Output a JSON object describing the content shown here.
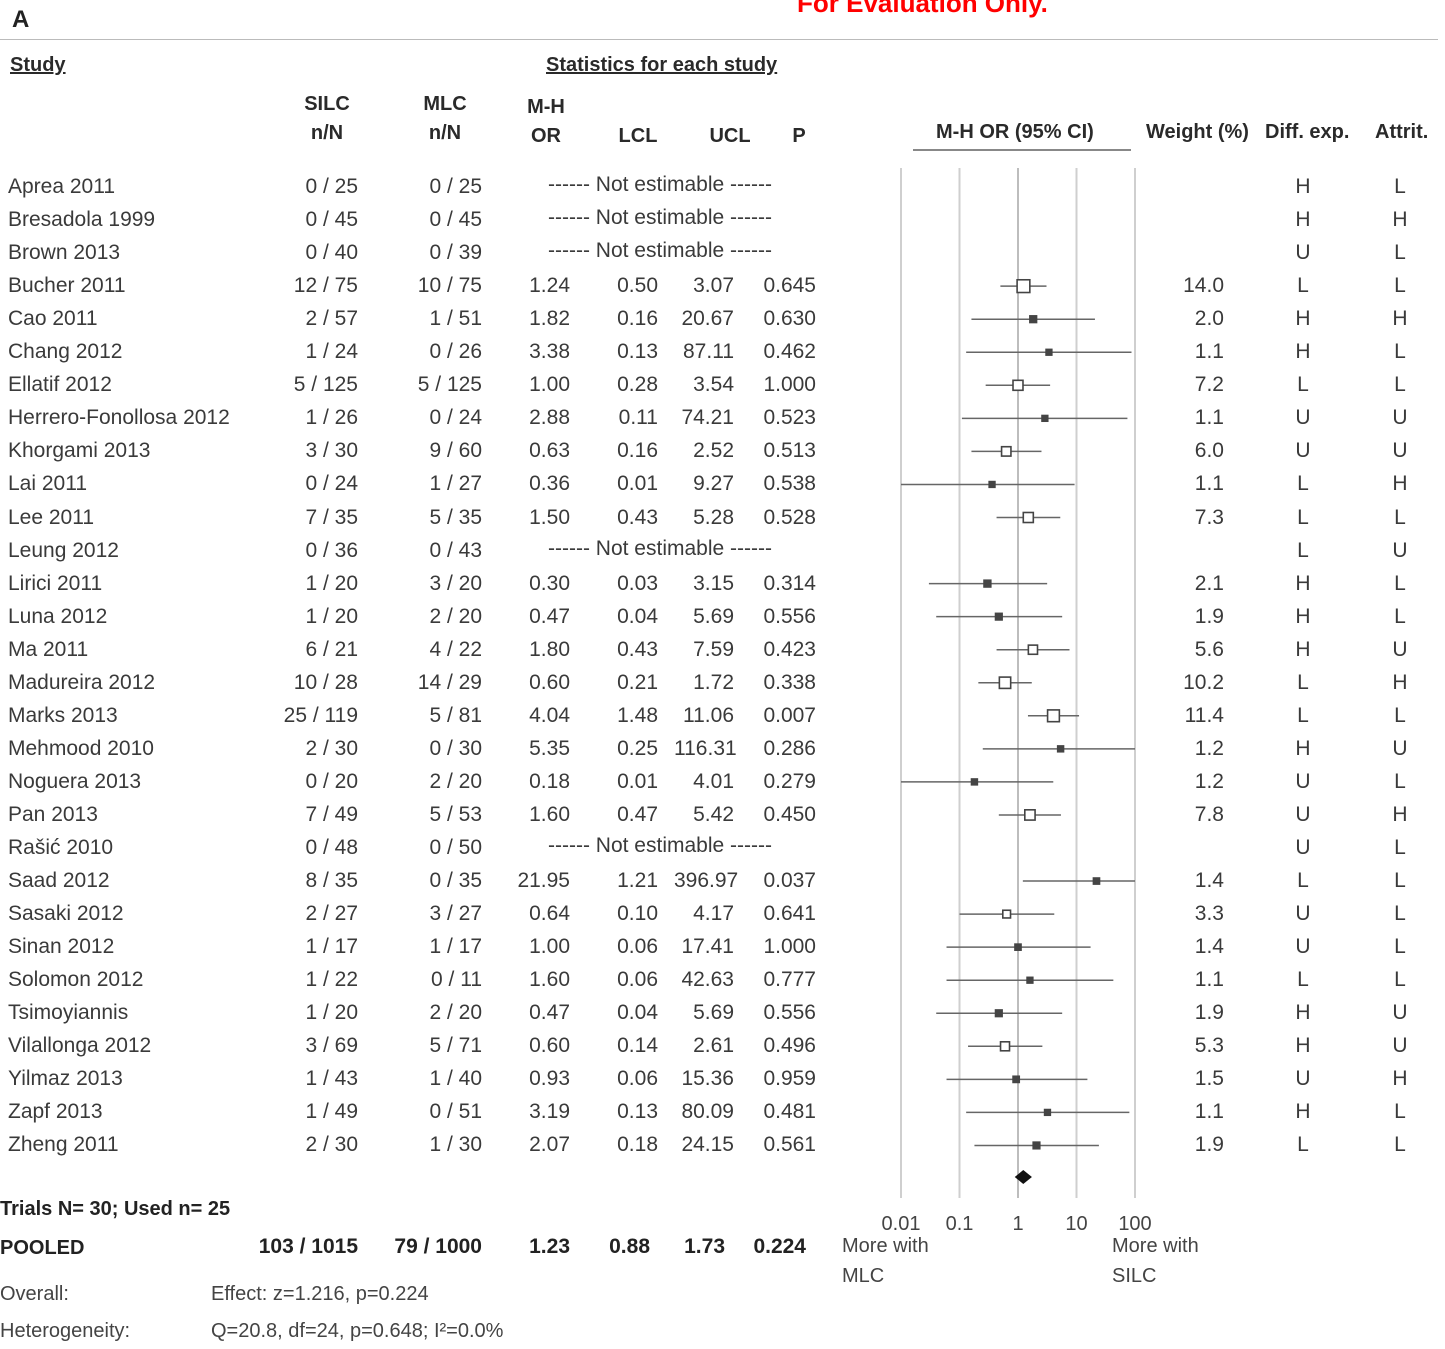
{
  "panel_label": "A",
  "watermark": "For Evaluation Only.",
  "headers": {
    "study": "Study",
    "stats_group": "Statistics for each study",
    "silc_1": "SILC",
    "silc_2": "n/N",
    "mlc_1": "MLC",
    "mlc_2": "n/N",
    "mh_1": "M-H",
    "mh_2": "OR",
    "lcl": "LCL",
    "ucl": "UCL",
    "p": "P",
    "ci": "M-H OR (95% CI)",
    "weight": "Weight (%)",
    "diff": "Diff. exp.",
    "attrit": "Attrit."
  },
  "not_estimable": "------ Not estimable ------",
  "studies": [
    {
      "study": "Aprea 2011",
      "silc": "0 / 25",
      "mlc": "0 / 25",
      "or": "",
      "lcl": "",
      "ucl": "",
      "p": "",
      "ne": "------ Not estimable ------",
      "weight": "",
      "diff": "H",
      "attrit": "L"
    },
    {
      "study": "Bresadola 1999",
      "silc": "0 / 45",
      "mlc": "0 / 45",
      "or": "",
      "lcl": "",
      "ucl": "",
      "p": "",
      "ne": "------ Not estimable ------",
      "weight": "",
      "diff": "H",
      "attrit": "H"
    },
    {
      "study": "Brown 2013",
      "silc": "0 / 40",
      "mlc": "0 / 39",
      "or": "",
      "lcl": "",
      "ucl": "",
      "p": "",
      "ne": "------ Not estimable ------",
      "weight": "",
      "diff": "U",
      "attrit": "L"
    },
    {
      "study": "Bucher 2011",
      "silc": "12 / 75",
      "mlc": "10 / 75",
      "or": "1.24",
      "lcl": "0.50",
      "ucl": "3.07",
      "p": "0.645",
      "ne": "",
      "weight": "14.0",
      "diff": "L",
      "attrit": "L"
    },
    {
      "study": "Cao 2011",
      "silc": "2 / 57",
      "mlc": "1 / 51",
      "or": "1.82",
      "lcl": "0.16",
      "ucl": "20.67",
      "p": "0.630",
      "ne": "",
      "weight": "2.0",
      "diff": "H",
      "attrit": "H"
    },
    {
      "study": "Chang 2012",
      "silc": "1 / 24",
      "mlc": "0 / 26",
      "or": "3.38",
      "lcl": "0.13",
      "ucl": "87.11",
      "p": "0.462",
      "ne": "",
      "weight": "1.1",
      "diff": "H",
      "attrit": "L"
    },
    {
      "study": "Ellatif 2012",
      "silc": "5 / 125",
      "mlc": "5 / 125",
      "or": "1.00",
      "lcl": "0.28",
      "ucl": "3.54",
      "p": "1.000",
      "ne": "",
      "weight": "7.2",
      "diff": "L",
      "attrit": "L"
    },
    {
      "study": "Herrero-Fonollosa 2012",
      "silc": "1 / 26",
      "mlc": "0 / 24",
      "or": "2.88",
      "lcl": "0.11",
      "ucl": "74.21",
      "p": "0.523",
      "ne": "",
      "weight": "1.1",
      "diff": "U",
      "attrit": "U"
    },
    {
      "study": "Khorgami 2013",
      "silc": "3 / 30",
      "mlc": "9 / 60",
      "or": "0.63",
      "lcl": "0.16",
      "ucl": "2.52",
      "p": "0.513",
      "ne": "",
      "weight": "6.0",
      "diff": "U",
      "attrit": "U"
    },
    {
      "study": "Lai 2011",
      "silc": "0 / 24",
      "mlc": "1 / 27",
      "or": "0.36",
      "lcl": "0.01",
      "ucl": "9.27",
      "p": "0.538",
      "ne": "",
      "weight": "1.1",
      "diff": "L",
      "attrit": "H"
    },
    {
      "study": "Lee 2011",
      "silc": "7 / 35",
      "mlc": "5 / 35",
      "or": "1.50",
      "lcl": "0.43",
      "ucl": "5.28",
      "p": "0.528",
      "ne": "",
      "weight": "7.3",
      "diff": "L",
      "attrit": "L"
    },
    {
      "study": "Leung 2012",
      "silc": "0 / 36",
      "mlc": "0 / 43",
      "or": "",
      "lcl": "",
      "ucl": "",
      "p": "",
      "ne": "------ Not estimable ------",
      "weight": "",
      "diff": "L",
      "attrit": "U"
    },
    {
      "study": "Lirici 2011",
      "silc": "1 / 20",
      "mlc": "3 / 20",
      "or": "0.30",
      "lcl": "0.03",
      "ucl": "3.15",
      "p": "0.314",
      "ne": "",
      "weight": "2.1",
      "diff": "H",
      "attrit": "L"
    },
    {
      "study": "Luna 2012",
      "silc": "1 / 20",
      "mlc": "2 / 20",
      "or": "0.47",
      "lcl": "0.04",
      "ucl": "5.69",
      "p": "0.556",
      "ne": "",
      "weight": "1.9",
      "diff": "H",
      "attrit": "L"
    },
    {
      "study": "Ma 2011",
      "silc": "6 / 21",
      "mlc": "4 / 22",
      "or": "1.80",
      "lcl": "0.43",
      "ucl": "7.59",
      "p": "0.423",
      "ne": "",
      "weight": "5.6",
      "diff": "H",
      "attrit": "U"
    },
    {
      "study": "Madureira 2012",
      "silc": "10 / 28",
      "mlc": "14 / 29",
      "or": "0.60",
      "lcl": "0.21",
      "ucl": "1.72",
      "p": "0.338",
      "ne": "",
      "weight": "10.2",
      "diff": "L",
      "attrit": "H"
    },
    {
      "study": "Marks 2013",
      "silc": "25 / 119",
      "mlc": "5 / 81",
      "or": "4.04",
      "lcl": "1.48",
      "ucl": "11.06",
      "p": "0.007",
      "ne": "",
      "weight": "11.4",
      "diff": "L",
      "attrit": "L"
    },
    {
      "study": "Mehmood 2010",
      "silc": "2 / 30",
      "mlc": "0 / 30",
      "or": "5.35",
      "lcl": "0.25",
      "ucl": "116.31",
      "p": "0.286",
      "ne": "",
      "weight": "1.2",
      "diff": "H",
      "attrit": "U"
    },
    {
      "study": "Noguera 2013",
      "silc": "0 / 20",
      "mlc": "2 / 20",
      "or": "0.18",
      "lcl": "0.01",
      "ucl": "4.01",
      "p": "0.279",
      "ne": "",
      "weight": "1.2",
      "diff": "U",
      "attrit": "L"
    },
    {
      "study": "Pan 2013",
      "silc": "7 / 49",
      "mlc": "5 / 53",
      "or": "1.60",
      "lcl": "0.47",
      "ucl": "5.42",
      "p": "0.450",
      "ne": "",
      "weight": "7.8",
      "diff": "U",
      "attrit": "H"
    },
    {
      "study": "Rašić 2010",
      "silc": "0 / 48",
      "mlc": "0 / 50",
      "or": "",
      "lcl": "",
      "ucl": "",
      "p": "",
      "ne": "------ Not estimable ------",
      "weight": "",
      "diff": "U",
      "attrit": "L"
    },
    {
      "study": "Saad 2012",
      "silc": "8 / 35",
      "mlc": "0 / 35",
      "or": "21.95",
      "lcl": "1.21",
      "ucl": "396.97",
      "p": "0.037",
      "ne": "",
      "weight": "1.4",
      "diff": "L",
      "attrit": "L"
    },
    {
      "study": "Sasaki 2012",
      "silc": "2 / 27",
      "mlc": "3 / 27",
      "or": "0.64",
      "lcl": "0.10",
      "ucl": "4.17",
      "p": "0.641",
      "ne": "",
      "weight": "3.3",
      "diff": "U",
      "attrit": "L"
    },
    {
      "study": "Sinan 2012",
      "silc": "1 / 17",
      "mlc": "1 / 17",
      "or": "1.00",
      "lcl": "0.06",
      "ucl": "17.41",
      "p": "1.000",
      "ne": "",
      "weight": "1.4",
      "diff": "U",
      "attrit": "L"
    },
    {
      "study": "Solomon 2012",
      "silc": "1 / 22",
      "mlc": "0 / 11",
      "or": "1.60",
      "lcl": "0.06",
      "ucl": "42.63",
      "p": "0.777",
      "ne": "",
      "weight": "1.1",
      "diff": "L",
      "attrit": "L"
    },
    {
      "study": "Tsimoyiannis",
      "silc": "1 / 20",
      "mlc": "2 / 20",
      "or": "0.47",
      "lcl": "0.04",
      "ucl": "5.69",
      "p": "0.556",
      "ne": "",
      "weight": "1.9",
      "diff": "H",
      "attrit": "U"
    },
    {
      "study": "Vilallonga 2012",
      "silc": "3 / 69",
      "mlc": "5 / 71",
      "or": "0.60",
      "lcl": "0.14",
      "ucl": "2.61",
      "p": "0.496",
      "ne": "",
      "weight": "5.3",
      "diff": "H",
      "attrit": "U"
    },
    {
      "study": "Yilmaz 2013",
      "silc": "1 / 43",
      "mlc": "1 / 40",
      "or": "0.93",
      "lcl": "0.06",
      "ucl": "15.36",
      "p": "0.959",
      "ne": "",
      "weight": "1.5",
      "diff": "U",
      "attrit": "H"
    },
    {
      "study": "Zapf 2013",
      "silc": "1 / 49",
      "mlc": "0 / 51",
      "or": "3.19",
      "lcl": "0.13",
      "ucl": "80.09",
      "p": "0.481",
      "ne": "",
      "weight": "1.1",
      "diff": "H",
      "attrit": "L"
    },
    {
      "study": "Zheng 2011",
      "silc": "2 / 30",
      "mlc": "1 / 30",
      "or": "2.07",
      "lcl": "0.18",
      "ucl": "24.15",
      "p": "0.561",
      "ne": "",
      "weight": "1.9",
      "diff": "L",
      "attrit": "L"
    }
  ],
  "summary": {
    "trials": "Trials N= 30; Used n= 25",
    "pooled_label": "POOLED",
    "silc": "103 / 1015",
    "mlc": "79 / 1000",
    "or": "1.23",
    "lcl": "0.88",
    "ucl": "1.73",
    "p": "0.224",
    "overall_label": "Overall:",
    "overall_value": "Effect: z=1.216, p=0.224",
    "heterogeneity_label": "Heterogeneity:",
    "heterogeneity_value": "Q=20.8, df=24, p=0.648; I²=0.0%"
  },
  "axis": {
    "ticks": [
      "0.01",
      "0.1",
      "1",
      "10",
      "100"
    ],
    "left_label_1": "More with",
    "left_label_2": "MLC",
    "right_label_1": "More with",
    "right_label_2": "SILC"
  },
  "chart_data": {
    "type": "forest",
    "title": "",
    "xlabel": "M-H OR (95% CI)",
    "x_scale": "log",
    "xlim": [
      0.01,
      100
    ],
    "x_ticks": [
      0.01,
      0.1,
      1,
      10,
      100
    ],
    "grid": true,
    "points": [
      {
        "study": "Aprea 2011",
        "or": null,
        "lcl": null,
        "ucl": null,
        "weight": null
      },
      {
        "study": "Bresadola 1999",
        "or": null,
        "lcl": null,
        "ucl": null,
        "weight": null
      },
      {
        "study": "Brown 2013",
        "or": null,
        "lcl": null,
        "ucl": null,
        "weight": null
      },
      {
        "study": "Bucher 2011",
        "or": 1.24,
        "lcl": 0.5,
        "ucl": 3.07,
        "weight": 14.0
      },
      {
        "study": "Cao 2011",
        "or": 1.82,
        "lcl": 0.16,
        "ucl": 20.67,
        "weight": 2.0
      },
      {
        "study": "Chang 2012",
        "or": 3.38,
        "lcl": 0.13,
        "ucl": 87.11,
        "weight": 1.1
      },
      {
        "study": "Ellatif 2012",
        "or": 1.0,
        "lcl": 0.28,
        "ucl": 3.54,
        "weight": 7.2
      },
      {
        "study": "Herrero-Fonollosa 2012",
        "or": 2.88,
        "lcl": 0.11,
        "ucl": 74.21,
        "weight": 1.1
      },
      {
        "study": "Khorgami 2013",
        "or": 0.63,
        "lcl": 0.16,
        "ucl": 2.52,
        "weight": 6.0
      },
      {
        "study": "Lai 2011",
        "or": 0.36,
        "lcl": 0.01,
        "ucl": 9.27,
        "weight": 1.1
      },
      {
        "study": "Lee 2011",
        "or": 1.5,
        "lcl": 0.43,
        "ucl": 5.28,
        "weight": 7.3
      },
      {
        "study": "Leung 2012",
        "or": null,
        "lcl": null,
        "ucl": null,
        "weight": null
      },
      {
        "study": "Lirici 2011",
        "or": 0.3,
        "lcl": 0.03,
        "ucl": 3.15,
        "weight": 2.1
      },
      {
        "study": "Luna 2012",
        "or": 0.47,
        "lcl": 0.04,
        "ucl": 5.69,
        "weight": 1.9
      },
      {
        "study": "Ma 2011",
        "or": 1.8,
        "lcl": 0.43,
        "ucl": 7.59,
        "weight": 5.6
      },
      {
        "study": "Madureira 2012",
        "or": 0.6,
        "lcl": 0.21,
        "ucl": 1.72,
        "weight": 10.2
      },
      {
        "study": "Marks 2013",
        "or": 4.04,
        "lcl": 1.48,
        "ucl": 11.06,
        "weight": 11.4
      },
      {
        "study": "Mehmood 2010",
        "or": 5.35,
        "lcl": 0.25,
        "ucl": 116.31,
        "weight": 1.2
      },
      {
        "study": "Noguera 2013",
        "or": 0.18,
        "lcl": 0.01,
        "ucl": 4.01,
        "weight": 1.2
      },
      {
        "study": "Pan 2013",
        "or": 1.6,
        "lcl": 0.47,
        "ucl": 5.42,
        "weight": 7.8
      },
      {
        "study": "Rašić 2010",
        "or": null,
        "lcl": null,
        "ucl": null,
        "weight": null
      },
      {
        "study": "Saad 2012",
        "or": 21.95,
        "lcl": 1.21,
        "ucl": 396.97,
        "weight": 1.4
      },
      {
        "study": "Sasaki 2012",
        "or": 0.64,
        "lcl": 0.1,
        "ucl": 4.17,
        "weight": 3.3
      },
      {
        "study": "Sinan 2012",
        "or": 1.0,
        "lcl": 0.06,
        "ucl": 17.41,
        "weight": 1.4
      },
      {
        "study": "Solomon 2012",
        "or": 1.6,
        "lcl": 0.06,
        "ucl": 42.63,
        "weight": 1.1
      },
      {
        "study": "Tsimoyiannis",
        "or": 0.47,
        "lcl": 0.04,
        "ucl": 5.69,
        "weight": 1.9
      },
      {
        "study": "Vilallonga 2012",
        "or": 0.6,
        "lcl": 0.14,
        "ucl": 2.61,
        "weight": 5.3
      },
      {
        "study": "Yilmaz 2013",
        "or": 0.93,
        "lcl": 0.06,
        "ucl": 15.36,
        "weight": 1.5
      },
      {
        "study": "Zapf 2013",
        "or": 3.19,
        "lcl": 0.13,
        "ucl": 80.09,
        "weight": 1.1
      },
      {
        "study": "Zheng 2011",
        "or": 2.07,
        "lcl": 0.18,
        "ucl": 24.15,
        "weight": 1.9
      }
    ],
    "pooled": {
      "or": 1.23,
      "lcl": 0.88,
      "ucl": 1.73,
      "p": 0.224
    }
  }
}
